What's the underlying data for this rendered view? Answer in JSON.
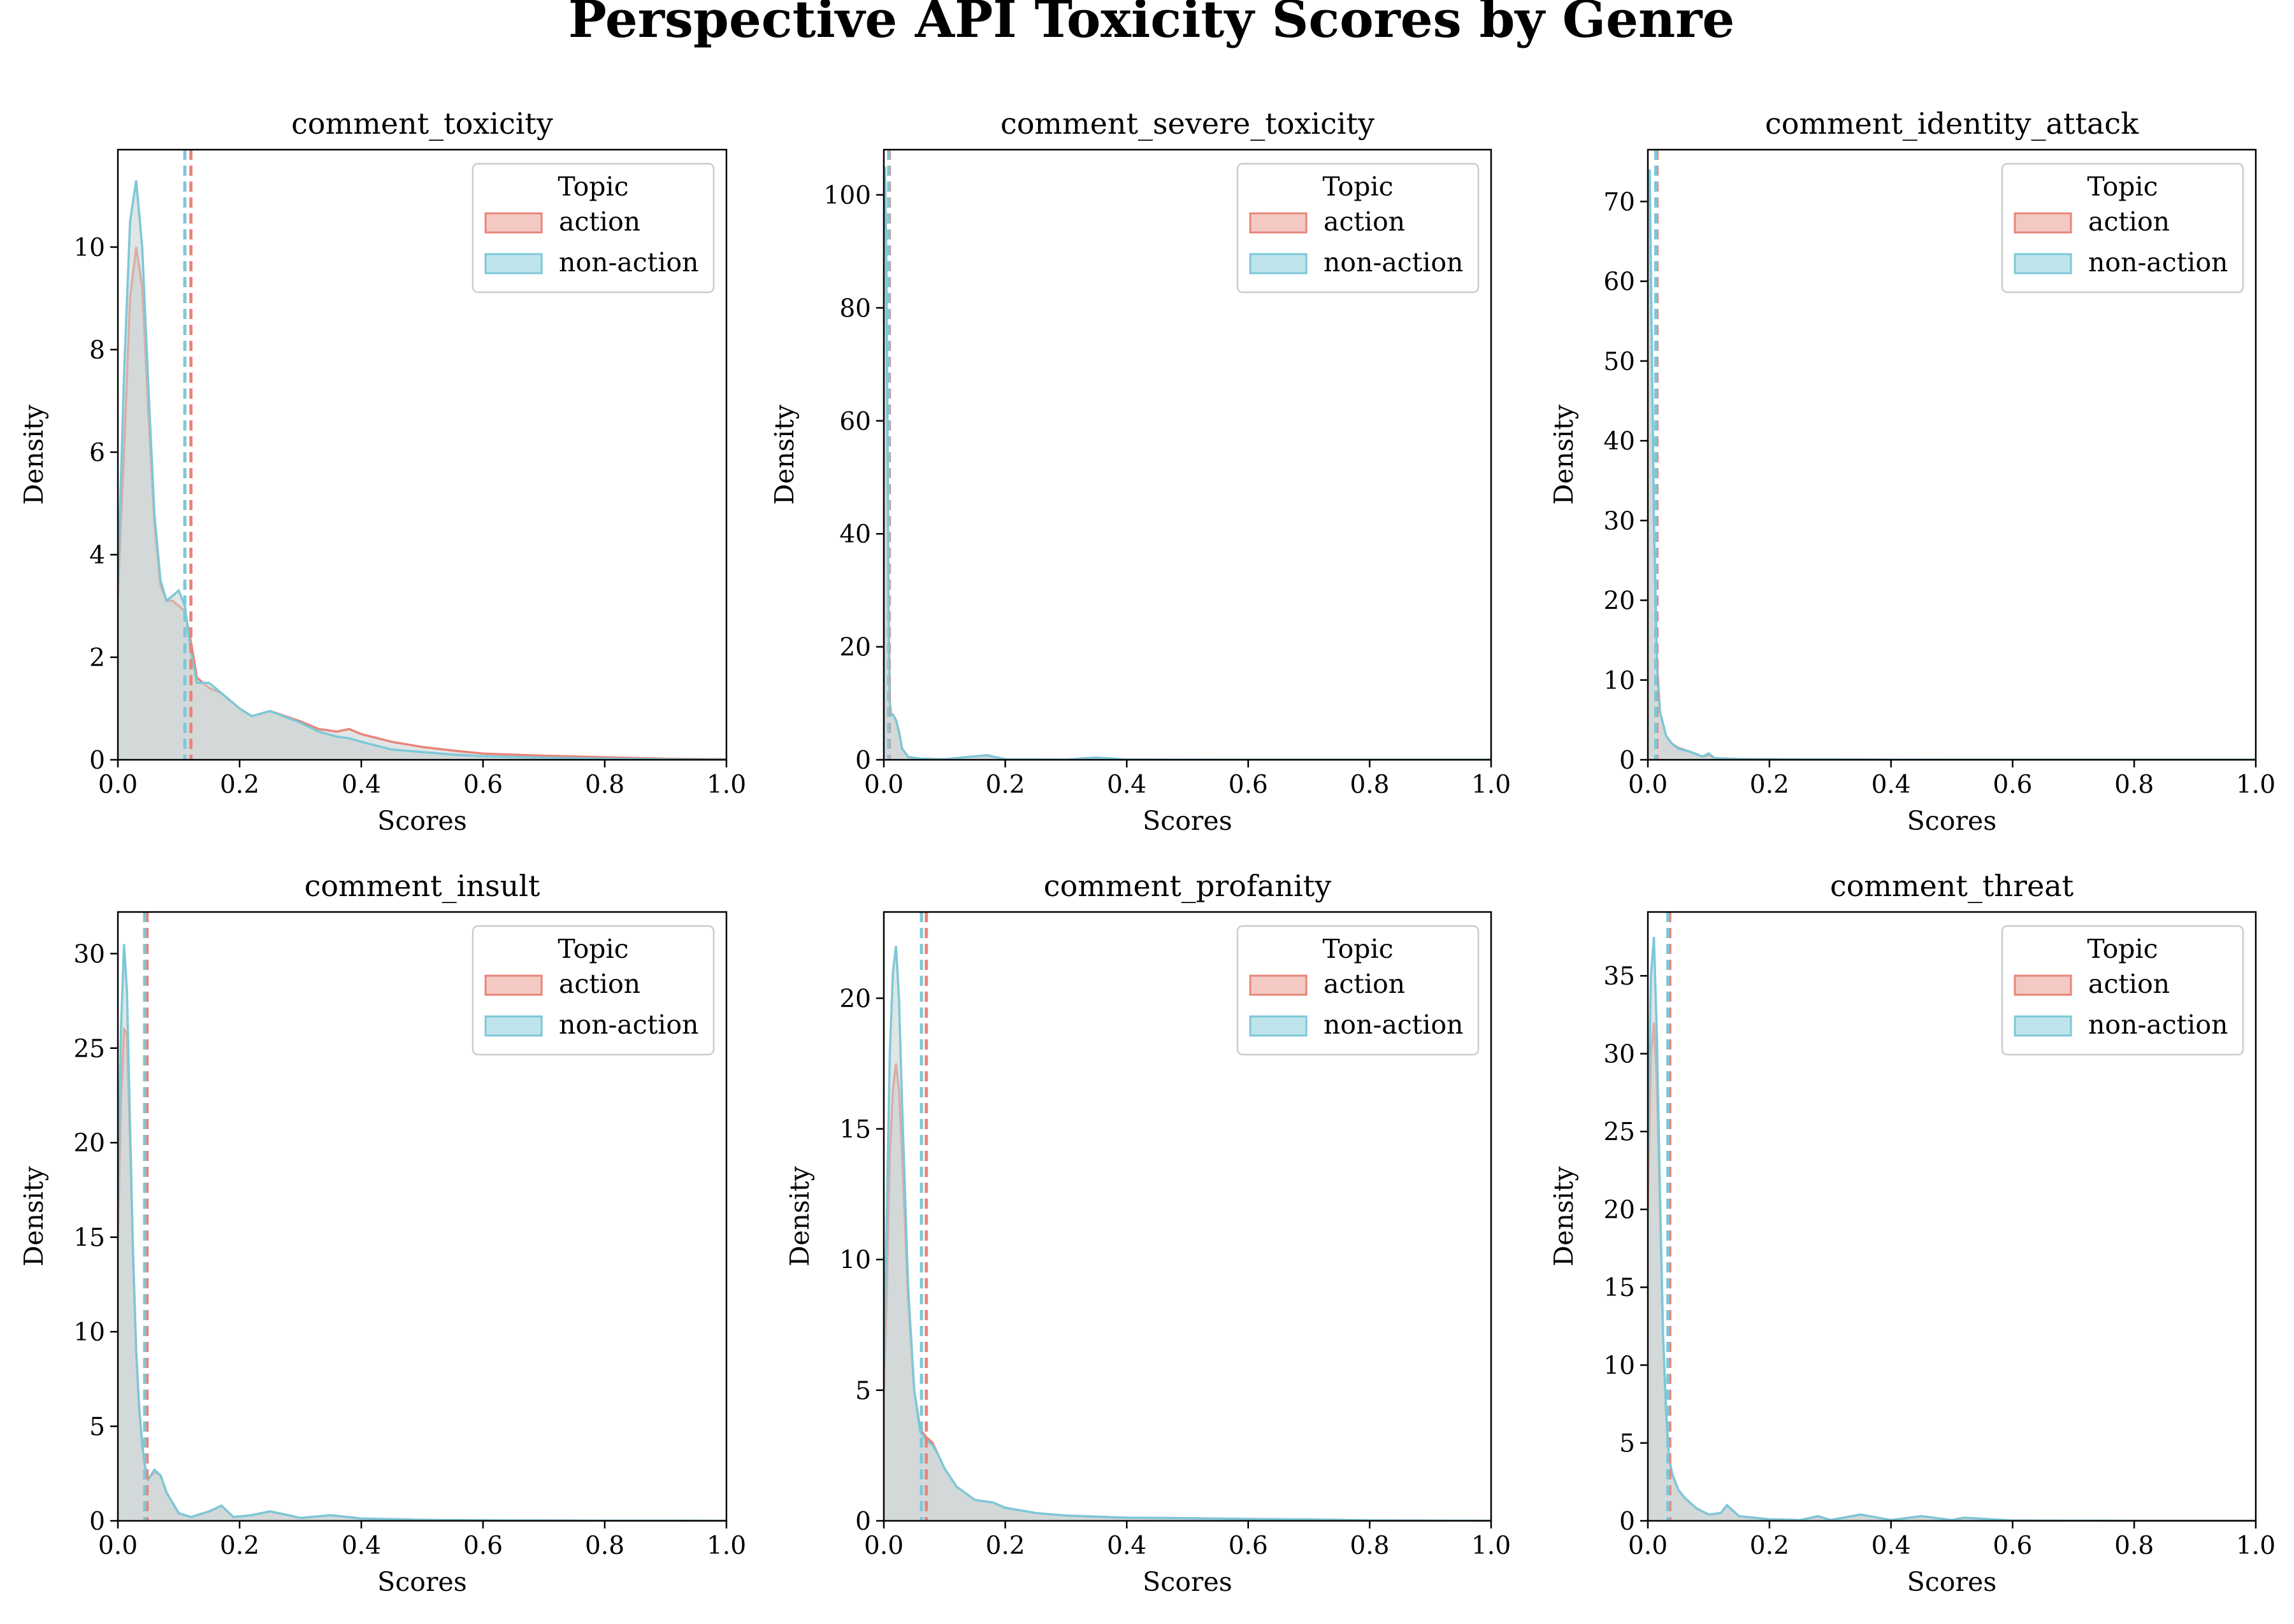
{
  "figure": {
    "title": "Perspective API Toxicity Scores by Genre"
  },
  "colors": {
    "action": "#e8857a",
    "non_action": "#7cc8d8",
    "overlap_fill": "#c9d0d0"
  },
  "chart_data": [
    {
      "type": "area",
      "title": "comment_toxicity",
      "xlabel": "Scores",
      "ylabel": "Density",
      "xlim": [
        0,
        1
      ],
      "ylim": [
        0,
        11.9
      ],
      "xticks": [
        "0.0",
        "0.2",
        "0.4",
        "0.6",
        "0.8",
        "1.0"
      ],
      "yticks": [
        "0",
        "2",
        "4",
        "6",
        "8",
        "10"
      ],
      "ytick_values": [
        0,
        2,
        4,
        6,
        8,
        10
      ],
      "legend": {
        "title": "Topic",
        "entries": [
          "action",
          "non-action"
        ],
        "placement": "top-right"
      },
      "series": [
        {
          "name": "action",
          "mean": 0.12,
          "x": [
            0,
            0.01,
            0.02,
            0.03,
            0.04,
            0.05,
            0.06,
            0.07,
            0.08,
            0.09,
            0.1,
            0.11,
            0.12,
            0.13,
            0.15,
            0.17,
            0.2,
            0.22,
            0.25,
            0.3,
            0.33,
            0.36,
            0.38,
            0.4,
            0.45,
            0.5,
            0.55,
            0.6,
            0.7,
            0.8,
            0.9,
            1.0
          ],
          "y": [
            3.2,
            6.0,
            9.0,
            10.0,
            9.2,
            6.8,
            4.6,
            3.4,
            3.1,
            3.1,
            3.0,
            2.9,
            2.3,
            1.6,
            1.4,
            1.3,
            1.0,
            0.85,
            0.95,
            0.75,
            0.6,
            0.55,
            0.6,
            0.5,
            0.35,
            0.25,
            0.18,
            0.12,
            0.08,
            0.05,
            0.02,
            0.01
          ]
        },
        {
          "name": "non-action",
          "mean": 0.11,
          "x": [
            0,
            0.01,
            0.02,
            0.03,
            0.04,
            0.05,
            0.06,
            0.07,
            0.08,
            0.09,
            0.1,
            0.11,
            0.12,
            0.13,
            0.15,
            0.17,
            0.2,
            0.22,
            0.25,
            0.3,
            0.33,
            0.36,
            0.38,
            0.4,
            0.45,
            0.5,
            0.55,
            0.6,
            0.7,
            0.8,
            0.9,
            1.0
          ],
          "y": [
            3.5,
            7.5,
            10.5,
            11.3,
            10.0,
            7.3,
            4.8,
            3.5,
            3.1,
            3.2,
            3.3,
            3.0,
            2.1,
            1.5,
            1.5,
            1.3,
            1.0,
            0.85,
            0.95,
            0.72,
            0.55,
            0.45,
            0.42,
            0.35,
            0.2,
            0.15,
            0.1,
            0.07,
            0.04,
            0.02,
            0.01,
            0.0
          ]
        }
      ]
    },
    {
      "type": "area",
      "title": "comment_severe_toxicity",
      "xlabel": "Scores",
      "ylabel": "Density",
      "xlim": [
        0,
        1
      ],
      "ylim": [
        0,
        108
      ],
      "xticks": [
        "0.0",
        "0.2",
        "0.4",
        "0.6",
        "0.8",
        "1.0"
      ],
      "yticks": [
        "0",
        "20",
        "40",
        "60",
        "80",
        "100"
      ],
      "ytick_values": [
        0,
        20,
        40,
        60,
        80,
        100
      ],
      "legend": {
        "title": "Topic",
        "entries": [
          "action",
          "non-action"
        ],
        "placement": "top-right"
      },
      "series": [
        {
          "name": "action",
          "mean": 0.009,
          "x": [
            0,
            0.002,
            0.004,
            0.006,
            0.008,
            0.01,
            0.012,
            0.015,
            0.02,
            0.025,
            0.03,
            0.04,
            0.06,
            0.1,
            0.17,
            0.2,
            0.3,
            0.35,
            0.4,
            0.6,
            0.8,
            1.0
          ],
          "y": [
            100,
            104,
            90,
            60,
            25,
            10,
            8,
            8,
            7,
            5,
            2,
            0.5,
            0.2,
            0.1,
            0.8,
            0.1,
            0.05,
            0.4,
            0.05,
            0.0,
            0.0,
            0.0
          ]
        },
        {
          "name": "non-action",
          "mean": 0.008,
          "x": [
            0,
            0.002,
            0.004,
            0.006,
            0.008,
            0.01,
            0.012,
            0.015,
            0.02,
            0.025,
            0.03,
            0.04,
            0.06,
            0.1,
            0.17,
            0.2,
            0.3,
            0.35,
            0.4,
            0.6,
            0.8,
            1.0
          ],
          "y": [
            102,
            105,
            88,
            58,
            24,
            10,
            8,
            8,
            7,
            5,
            2,
            0.5,
            0.2,
            0.1,
            0.8,
            0.1,
            0.05,
            0.4,
            0.05,
            0.0,
            0.0,
            0.0
          ]
        }
      ]
    },
    {
      "type": "area",
      "title": "comment_identity_attack",
      "xlabel": "Scores",
      "ylabel": "Density",
      "xlim": [
        0,
        1
      ],
      "ylim": [
        0,
        76.5
      ],
      "xticks": [
        "0.0",
        "0.2",
        "0.4",
        "0.6",
        "0.8",
        "1.0"
      ],
      "yticks": [
        "0",
        "10",
        "20",
        "30",
        "40",
        "50",
        "60",
        "70"
      ],
      "ytick_values": [
        0,
        10,
        20,
        30,
        40,
        50,
        60,
        70
      ],
      "legend": {
        "title": "Topic",
        "entries": [
          "action",
          "non-action"
        ],
        "placement": "top-right"
      },
      "series": [
        {
          "name": "action",
          "mean": 0.015,
          "x": [
            0,
            0.003,
            0.006,
            0.01,
            0.015,
            0.02,
            0.03,
            0.04,
            0.05,
            0.07,
            0.09,
            0.1,
            0.11,
            0.15,
            0.2,
            0.3,
            0.4,
            0.6,
            0.8,
            1.0
          ],
          "y": [
            70,
            72,
            55,
            30,
            12,
            6,
            3,
            2,
            1.5,
            1.0,
            0.4,
            0.6,
            0.2,
            0.1,
            0.08,
            0.05,
            0.02,
            0.0,
            0.0,
            0.0
          ]
        },
        {
          "name": "non-action",
          "mean": 0.013,
          "x": [
            0,
            0.003,
            0.006,
            0.01,
            0.015,
            0.02,
            0.03,
            0.04,
            0.05,
            0.07,
            0.09,
            0.1,
            0.11,
            0.15,
            0.2,
            0.3,
            0.4,
            0.6,
            0.8,
            1.0
          ],
          "y": [
            72,
            74,
            56,
            30,
            12,
            6,
            3,
            2,
            1.4,
            1.0,
            0.4,
            0.8,
            0.2,
            0.1,
            0.08,
            0.05,
            0.02,
            0.0,
            0.0,
            0.0
          ]
        }
      ]
    },
    {
      "type": "area",
      "title": "comment_insult",
      "xlabel": "Scores",
      "ylabel": "Density",
      "xlim": [
        0,
        1
      ],
      "ylim": [
        0,
        32.2
      ],
      "xticks": [
        "0.0",
        "0.2",
        "0.4",
        "0.6",
        "0.8",
        "1.0"
      ],
      "yticks": [
        "0",
        "5",
        "10",
        "15",
        "20",
        "25",
        "30"
      ],
      "ytick_values": [
        0,
        5,
        10,
        15,
        20,
        25,
        30
      ],
      "legend": {
        "title": "Topic",
        "entries": [
          "action",
          "non-action"
        ],
        "placement": "top-right"
      },
      "series": [
        {
          "name": "action",
          "mean": 0.048,
          "x": [
            0,
            0.005,
            0.01,
            0.015,
            0.02,
            0.025,
            0.03,
            0.035,
            0.04,
            0.045,
            0.05,
            0.06,
            0.07,
            0.08,
            0.1,
            0.12,
            0.15,
            0.17,
            0.19,
            0.22,
            0.25,
            0.28,
            0.3,
            0.35,
            0.4,
            0.5,
            0.6,
            0.8,
            1.0
          ],
          "y": [
            15,
            22,
            26,
            25.8,
            20,
            14,
            9,
            6,
            4,
            2.8,
            2.2,
            2.6,
            2.4,
            1.5,
            0.4,
            0.2,
            0.5,
            0.8,
            0.2,
            0.3,
            0.5,
            0.3,
            0.15,
            0.3,
            0.12,
            0.05,
            0.03,
            0.01,
            0.0
          ]
        },
        {
          "name": "non-action",
          "mean": 0.044,
          "x": [
            0,
            0.005,
            0.01,
            0.015,
            0.02,
            0.025,
            0.03,
            0.035,
            0.04,
            0.045,
            0.05,
            0.06,
            0.07,
            0.08,
            0.1,
            0.12,
            0.15,
            0.17,
            0.19,
            0.22,
            0.25,
            0.28,
            0.3,
            0.35,
            0.4,
            0.5,
            0.6,
            0.8,
            1.0
          ],
          "y": [
            17,
            26,
            30.5,
            28,
            21,
            14,
            9,
            6,
            4,
            2.8,
            2.2,
            2.7,
            2.4,
            1.5,
            0.4,
            0.2,
            0.5,
            0.8,
            0.2,
            0.3,
            0.5,
            0.3,
            0.15,
            0.3,
            0.12,
            0.05,
            0.03,
            0.01,
            0.0
          ]
        }
      ]
    },
    {
      "type": "area",
      "title": "comment_profanity",
      "xlabel": "Scores",
      "ylabel": "Density",
      "xlim": [
        0,
        1
      ],
      "ylim": [
        0,
        23.3
      ],
      "xticks": [
        "0.0",
        "0.2",
        "0.4",
        "0.6",
        "0.8",
        "1.0"
      ],
      "yticks": [
        "0",
        "5",
        "10",
        "15",
        "20"
      ],
      "ytick_values": [
        0,
        5,
        10,
        15,
        20
      ],
      "legend": {
        "title": "Topic",
        "entries": [
          "action",
          "non-action"
        ],
        "placement": "top-right"
      },
      "series": [
        {
          "name": "action",
          "mean": 0.07,
          "x": [
            0,
            0.005,
            0.01,
            0.015,
            0.02,
            0.025,
            0.03,
            0.04,
            0.05,
            0.06,
            0.07,
            0.08,
            0.09,
            0.1,
            0.12,
            0.15,
            0.18,
            0.2,
            0.25,
            0.3,
            0.4,
            0.5,
            0.6,
            0.7,
            0.8,
            1.0
          ],
          "y": [
            5,
            9,
            14,
            16.5,
            17.5,
            16.5,
            14,
            8.5,
            5,
            3.5,
            3.2,
            3.0,
            2.5,
            2.0,
            1.3,
            0.8,
            0.7,
            0.5,
            0.3,
            0.2,
            0.12,
            0.1,
            0.07,
            0.05,
            0.02,
            0.0
          ]
        },
        {
          "name": "non-action",
          "mean": 0.062,
          "x": [
            0,
            0.005,
            0.01,
            0.015,
            0.02,
            0.025,
            0.03,
            0.04,
            0.05,
            0.06,
            0.07,
            0.08,
            0.09,
            0.1,
            0.12,
            0.15,
            0.18,
            0.2,
            0.25,
            0.3,
            0.4,
            0.5,
            0.6,
            0.7,
            0.8,
            1.0
          ],
          "y": [
            6,
            12,
            18,
            21,
            22,
            20,
            16,
            9,
            5,
            3.4,
            3.1,
            2.9,
            2.5,
            2.0,
            1.3,
            0.8,
            0.7,
            0.5,
            0.3,
            0.2,
            0.12,
            0.1,
            0.07,
            0.05,
            0.02,
            0.0
          ]
        }
      ]
    },
    {
      "type": "area",
      "title": "comment_threat",
      "xlabel": "Scores",
      "ylabel": "Density",
      "xlim": [
        0,
        1
      ],
      "ylim": [
        0,
        39.1
      ],
      "xticks": [
        "0.0",
        "0.2",
        "0.4",
        "0.6",
        "0.8",
        "1.0"
      ],
      "yticks": [
        "0",
        "5",
        "10",
        "15",
        "20",
        "25",
        "30",
        "35"
      ],
      "ytick_values": [
        0,
        5,
        10,
        15,
        20,
        25,
        30,
        35
      ],
      "legend": {
        "title": "Topic",
        "entries": [
          "action",
          "non-action"
        ],
        "placement": "top-right"
      },
      "series": [
        {
          "name": "action",
          "mean": 0.036,
          "x": [
            0,
            0.005,
            0.01,
            0.015,
            0.02,
            0.025,
            0.03,
            0.035,
            0.04,
            0.05,
            0.06,
            0.08,
            0.1,
            0.12,
            0.13,
            0.15,
            0.2,
            0.25,
            0.28,
            0.3,
            0.35,
            0.4,
            0.45,
            0.5,
            0.52,
            0.6,
            0.8,
            1.0
          ],
          "y": [
            20,
            30,
            32,
            28,
            20,
            12,
            7,
            4,
            3,
            2,
            1.5,
            0.8,
            0.4,
            0.5,
            1.0,
            0.3,
            0.1,
            0.05,
            0.3,
            0.05,
            0.4,
            0.05,
            0.3,
            0.05,
            0.2,
            0.02,
            0.0,
            0.0
          ]
        },
        {
          "name": "non-action",
          "mean": 0.033,
          "x": [
            0,
            0.005,
            0.01,
            0.015,
            0.02,
            0.025,
            0.03,
            0.035,
            0.04,
            0.05,
            0.06,
            0.08,
            0.1,
            0.12,
            0.13,
            0.15,
            0.2,
            0.25,
            0.28,
            0.3,
            0.35,
            0.4,
            0.45,
            0.5,
            0.52,
            0.6,
            0.8,
            1.0
          ],
          "y": [
            24,
            35,
            37.5,
            31,
            21,
            12,
            7,
            4,
            3,
            2,
            1.5,
            0.8,
            0.4,
            0.5,
            1.0,
            0.3,
            0.1,
            0.05,
            0.3,
            0.05,
            0.4,
            0.05,
            0.3,
            0.05,
            0.2,
            0.02,
            0.0,
            0.0
          ]
        }
      ]
    }
  ]
}
